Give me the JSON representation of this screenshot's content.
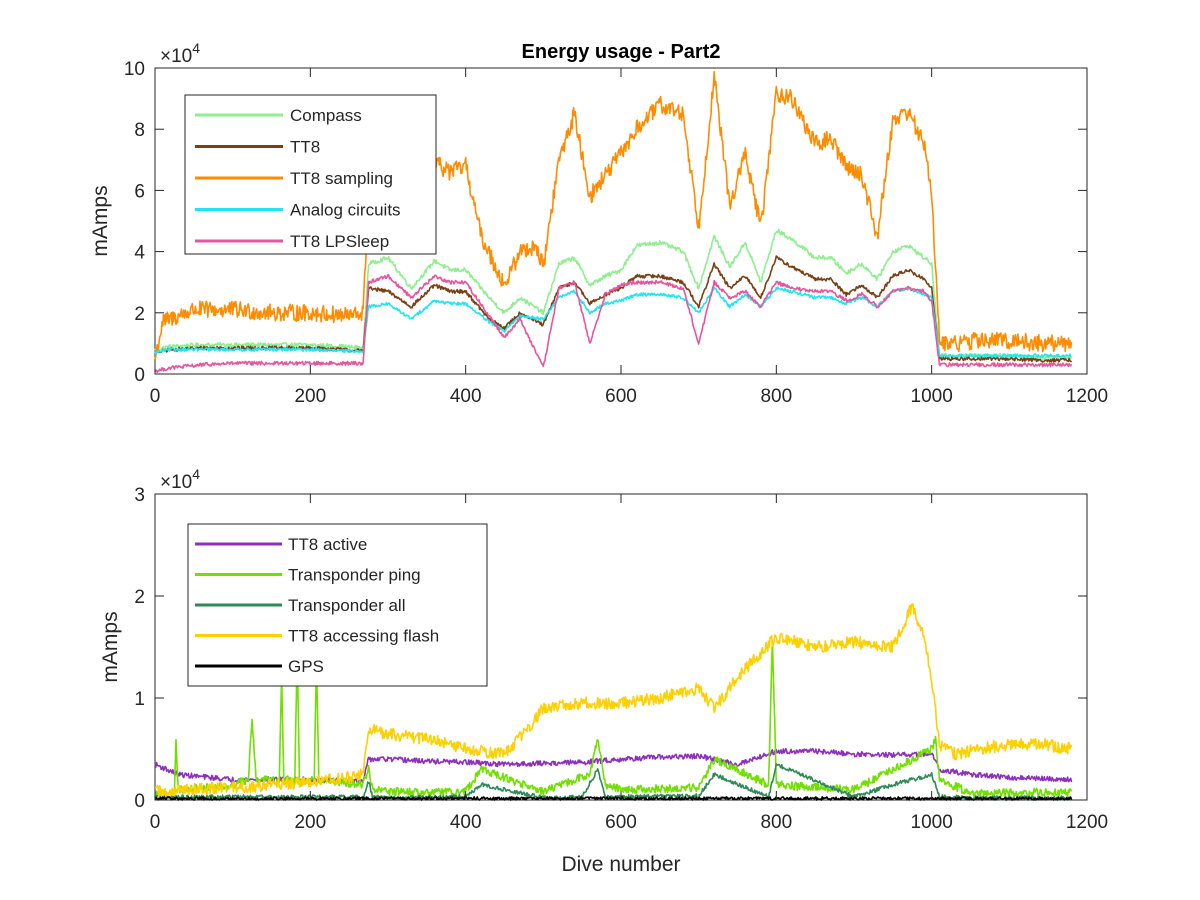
{
  "chart_data": [
    {
      "type": "line",
      "title": "Energy usage - Part2",
      "xlabel": "",
      "ylabel": "mAmps",
      "y_multiplier": "×10",
      "y_exponent": "4",
      "xlim": [
        0,
        1200
      ],
      "ylim": [
        0,
        100000
      ],
      "xticks": [
        0,
        200,
        400,
        600,
        800,
        1000,
        1200
      ],
      "yticks": [
        0,
        20000,
        40000,
        60000,
        80000,
        100000
      ],
      "ytick_labels": [
        "0",
        "2",
        "4",
        "6",
        "8",
        "10"
      ],
      "grid": false,
      "legend_position": "top-left",
      "series": [
        {
          "name": "Compass",
          "color": "#90ee90",
          "x": [
            0,
            20,
            60,
            100,
            150,
            200,
            240,
            268,
            275,
            300,
            330,
            360,
            380,
            400,
            430,
            450,
            470,
            500,
            520,
            540,
            560,
            580,
            600,
            620,
            650,
            680,
            700,
            720,
            740,
            760,
            780,
            800,
            820,
            850,
            870,
            890,
            910,
            930,
            950,
            970,
            990,
            1000,
            1010,
            1030,
            1060,
            1100,
            1140,
            1180
          ],
          "y": [
            8000,
            9000,
            9500,
            9500,
            9500,
            9500,
            9000,
            8500,
            36000,
            38000,
            28000,
            37000,
            34000,
            34000,
            25000,
            20000,
            25000,
            20000,
            36000,
            38000,
            29000,
            32000,
            34000,
            42000,
            43000,
            40000,
            28000,
            45000,
            35000,
            43000,
            30000,
            47000,
            44000,
            38000,
            38000,
            33000,
            36000,
            31000,
            40000,
            42000,
            38000,
            36000,
            6000,
            6000,
            6000,
            6000,
            5500,
            5500
          ],
          "noise": 700
        },
        {
          "name": "TT8",
          "color": "#7b3f14",
          "x": [
            0,
            20,
            60,
            100,
            150,
            200,
            240,
            268,
            275,
            300,
            330,
            360,
            380,
            400,
            430,
            450,
            470,
            500,
            520,
            540,
            560,
            580,
            600,
            620,
            650,
            680,
            700,
            720,
            740,
            760,
            780,
            800,
            820,
            850,
            870,
            890,
            910,
            930,
            950,
            970,
            990,
            1000,
            1010,
            1030,
            1060,
            1100,
            1140,
            1180
          ],
          "y": [
            7000,
            8000,
            8500,
            8500,
            8500,
            8500,
            8000,
            7500,
            28000,
            27000,
            22000,
            29000,
            27000,
            27000,
            18000,
            15000,
            20000,
            16000,
            28000,
            30000,
            23000,
            26000,
            28000,
            32000,
            32000,
            30000,
            22000,
            36000,
            28000,
            32000,
            25000,
            38000,
            35000,
            31000,
            31000,
            26000,
            29000,
            25000,
            32000,
            34000,
            31000,
            28000,
            5000,
            5000,
            5000,
            5000,
            4500,
            4500
          ],
          "noise": 600
        },
        {
          "name": "TT8 sampling",
          "color": "#ff8c00",
          "x": [
            0,
            10,
            50,
            100,
            150,
            200,
            250,
            268,
            275,
            300,
            330,
            360,
            380,
            400,
            420,
            450,
            470,
            490,
            500,
            520,
            540,
            560,
            580,
            600,
            620,
            650,
            680,
            700,
            720,
            740,
            760,
            780,
            800,
            820,
            850,
            870,
            890,
            910,
            930,
            950,
            970,
            990,
            1000,
            1010,
            1030,
            1060,
            1100,
            1140,
            1180
          ],
          "y": [
            5000,
            17000,
            21000,
            21000,
            20000,
            20000,
            19000,
            20000,
            58000,
            60000,
            55000,
            69000,
            66000,
            68000,
            45000,
            29000,
            40000,
            42000,
            35000,
            70000,
            85000,
            58000,
            65000,
            72000,
            80000,
            88000,
            85000,
            48000,
            97000,
            55000,
            72000,
            48000,
            92000,
            90000,
            75000,
            77000,
            68000,
            65000,
            45000,
            83000,
            86000,
            75000,
            60000,
            10000,
            10000,
            11000,
            11000,
            10000,
            10000
          ],
          "noise": 2800
        },
        {
          "name": "Analog circuits",
          "color": "#22e5f0",
          "x": [
            0,
            20,
            60,
            100,
            150,
            200,
            240,
            268,
            275,
            300,
            330,
            360,
            380,
            400,
            430,
            450,
            470,
            500,
            520,
            540,
            560,
            580,
            600,
            620,
            650,
            680,
            700,
            720,
            740,
            760,
            780,
            800,
            820,
            850,
            870,
            890,
            910,
            930,
            950,
            970,
            990,
            1000,
            1010,
            1030,
            1060,
            1100,
            1140,
            1180
          ],
          "y": [
            7000,
            8000,
            8000,
            8000,
            8000,
            8000,
            7500,
            7500,
            22000,
            23000,
            18000,
            24000,
            23000,
            23000,
            17000,
            14000,
            19000,
            18000,
            25000,
            27000,
            20000,
            23000,
            24000,
            26000,
            26000,
            25000,
            20000,
            28000,
            22000,
            26000,
            22000,
            28000,
            27000,
            25000,
            25000,
            23000,
            25000,
            22000,
            27000,
            28000,
            26000,
            25000,
            6000,
            6000,
            6000,
            6000,
            6000,
            6000
          ],
          "noise": 500
        },
        {
          "name": "TT8 LPSleep",
          "color": "#e8559c",
          "x": [
            0,
            20,
            60,
            100,
            150,
            200,
            240,
            268,
            275,
            300,
            330,
            360,
            380,
            400,
            430,
            450,
            470,
            500,
            520,
            540,
            560,
            580,
            600,
            620,
            650,
            680,
            700,
            720,
            740,
            760,
            780,
            800,
            820,
            850,
            870,
            890,
            910,
            930,
            950,
            970,
            990,
            1000,
            1010,
            1030,
            1060,
            1100,
            1140,
            1180
          ],
          "y": [
            1000,
            2000,
            3000,
            3500,
            3500,
            3500,
            3500,
            3500,
            30000,
            32000,
            25000,
            32000,
            30000,
            30000,
            19000,
            12000,
            18000,
            2000,
            28000,
            30000,
            10000,
            26000,
            29000,
            30000,
            30000,
            28000,
            10000,
            30000,
            25000,
            27000,
            22000,
            30000,
            28000,
            27000,
            27000,
            24000,
            26000,
            22000,
            27000,
            28000,
            27000,
            24000,
            3000,
            3000,
            3000,
            3000,
            3000,
            3000
          ],
          "noise": 600
        }
      ]
    },
    {
      "type": "line",
      "title": "",
      "xlabel": "Dive number",
      "ylabel": "mAmps",
      "y_multiplier": "×10",
      "y_exponent": "4",
      "xlim": [
        0,
        1200
      ],
      "ylim": [
        0,
        30000
      ],
      "xticks": [
        0,
        200,
        400,
        600,
        800,
        1000,
        1200
      ],
      "yticks": [
        0,
        10000,
        20000,
        30000
      ],
      "ytick_labels": [
        "0",
        "1",
        "2",
        "3"
      ],
      "grid": false,
      "legend_position": "top-left",
      "series": [
        {
          "name": "TT8 active",
          "color": "#8e2fbe",
          "x": [
            0,
            30,
            100,
            200,
            268,
            275,
            300,
            350,
            400,
            450,
            500,
            550,
            600,
            650,
            700,
            750,
            800,
            850,
            900,
            950,
            1000,
            1010,
            1050,
            1100,
            1180
          ],
          "y": [
            3500,
            2500,
            2000,
            2000,
            1800,
            4000,
            4000,
            3800,
            3700,
            3500,
            3600,
            3700,
            4000,
            4200,
            4300,
            3500,
            4800,
            4800,
            4500,
            4400,
            4500,
            3000,
            2500,
            2200,
            2000
          ],
          "noise": 250
        },
        {
          "name": "Transponder ping",
          "color": "#70e000",
          "x": [
            0,
            25,
            27,
            30,
            100,
            120,
            125,
            130,
            160,
            163,
            166,
            180,
            183,
            186,
            205,
            208,
            211,
            268,
            275,
            280,
            300,
            400,
            420,
            500,
            560,
            570,
            580,
            600,
            700,
            720,
            790,
            795,
            800,
            900,
            950,
            1000,
            1005,
            1010,
            1050,
            1100,
            1180
          ],
          "y": [
            500,
            500,
            6000,
            1000,
            1500,
            2000,
            8000,
            2000,
            2000,
            12000,
            2000,
            2000,
            15000,
            2000,
            2000,
            14000,
            2000,
            1500,
            3000,
            1000,
            800,
            800,
            3000,
            800,
            2500,
            6000,
            1500,
            1000,
            1200,
            4000,
            1500,
            16000,
            1500,
            1000,
            3000,
            5000,
            6000,
            2000,
            700,
            700,
            800
          ],
          "noise": 400
        },
        {
          "name": "Transponder all",
          "color": "#2e8b57",
          "x": [
            0,
            268,
            275,
            280,
            300,
            400,
            420,
            500,
            550,
            570,
            580,
            600,
            700,
            720,
            790,
            800,
            900,
            950,
            1000,
            1010,
            1050,
            1180
          ],
          "y": [
            300,
            300,
            1800,
            300,
            200,
            300,
            1500,
            200,
            300,
            3000,
            300,
            300,
            400,
            2500,
            300,
            3500,
            300,
            1500,
            2500,
            300,
            200,
            200
          ],
          "noise": 200
        },
        {
          "name": "TT8 accessing flash",
          "color": "#ffd000",
          "x": [
            0,
            50,
            100,
            150,
            200,
            250,
            268,
            275,
            300,
            350,
            400,
            450,
            480,
            500,
            550,
            600,
            650,
            700,
            720,
            750,
            800,
            850,
            900,
            950,
            975,
            990,
            1000,
            1010,
            1030,
            1060,
            1100,
            1140,
            1180
          ],
          "y": [
            800,
            1000,
            1200,
            1500,
            1800,
            2200,
            2500,
            7000,
            6500,
            6000,
            5000,
            4500,
            7000,
            9000,
            9500,
            9500,
            10000,
            11000,
            9000,
            12000,
            16000,
            15000,
            15500,
            15000,
            19000,
            16000,
            12000,
            5500,
            4500,
            5000,
            5500,
            5500,
            5000
          ],
          "noise": 600
        },
        {
          "name": "GPS",
          "color": "#000000",
          "x": [
            0,
            1180
          ],
          "y": [
            150,
            150
          ],
          "noise": 150
        }
      ]
    }
  ]
}
